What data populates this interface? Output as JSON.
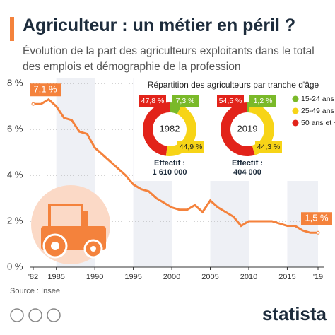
{
  "chart_data": [
    {
      "type": "line",
      "title": "Agriculteur : un métier en péril ?",
      "subtitle": "Évolution de la part des agriculteurs exploitants dans le total des emplois et démographie de la profession",
      "x": [
        1982,
        1983,
        1984,
        1985,
        1986,
        1987,
        1988,
        1989,
        1990,
        1991,
        1992,
        1993,
        1994,
        1995,
        1996,
        1997,
        1998,
        1999,
        2000,
        2001,
        2002,
        2003,
        2004,
        2005,
        2006,
        2007,
        2008,
        2009,
        2010,
        2011,
        2012,
        2013,
        2014,
        2015,
        2016,
        2017,
        2018,
        2019
      ],
      "values": [
        7.1,
        7.1,
        7.3,
        7.0,
        6.5,
        6.4,
        5.9,
        5.8,
        5.2,
        4.9,
        4.6,
        4.3,
        4.0,
        3.6,
        3.4,
        3.3,
        3.0,
        2.8,
        2.6,
        2.5,
        2.5,
        2.7,
        2.4,
        2.9,
        2.6,
        2.4,
        2.2,
        1.8,
        2.0,
        2.0,
        2.0,
        2.0,
        1.9,
        1.8,
        1.8,
        1.6,
        1.5,
        1.5
      ],
      "value_labels": [
        "7,1 %",
        null,
        null,
        null,
        null,
        null,
        null,
        null,
        null,
        null,
        null,
        null,
        null,
        null,
        null,
        null,
        null,
        null,
        null,
        null,
        null,
        null,
        null,
        null,
        null,
        null,
        null,
        null,
        null,
        null,
        null,
        null,
        null,
        null,
        null,
        null,
        null,
        "1,5 %"
      ],
      "color": "#f4823c",
      "xlim": [
        1982,
        2019
      ],
      "xticks": [
        {
          "value": 1982,
          "label": "'82"
        },
        1985,
        1990,
        1995,
        2000,
        2005,
        2010,
        2015,
        {
          "value": 2019,
          "label": "'19"
        }
      ],
      "ylim": [
        0,
        8
      ],
      "yticks": [
        {
          "value": 0,
          "label": "0 %"
        },
        {
          "value": 2,
          "label": "2 %"
        },
        {
          "value": 4,
          "label": "4 %"
        },
        {
          "value": 6,
          "label": "6 %"
        },
        {
          "value": 8,
          "label": "8 %"
        }
      ],
      "grid": true,
      "source": "Source : Insee",
      "brand": "statista"
    },
    {
      "type": "pie",
      "donut": true,
      "title": "Répartition des agriculteurs par tranche d'âge",
      "categories": [
        "15-24 ans",
        "25-49 ans",
        "50 ans et +"
      ],
      "colors": [
        "#7ab929",
        "#f7d417",
        "#e2231a"
      ],
      "pies": [
        {
          "label": "1982",
          "values": [
            7.3,
            44.9,
            47.8
          ],
          "value_labels": [
            "7,3 %",
            "44,9 %",
            "47,8 %"
          ],
          "total_label": "Effectif :",
          "total": {
            "value": 1610000,
            "label": "1 610 000"
          }
        },
        {
          "label": "2019",
          "values": [
            1.2,
            44.3,
            54.5
          ],
          "value_labels": [
            "1,2 %",
            "44,3 %",
            "54,5 %"
          ],
          "total_label": "Effectif :",
          "total": {
            "value": 404000,
            "label": "404 000"
          }
        }
      ]
    }
  ]
}
